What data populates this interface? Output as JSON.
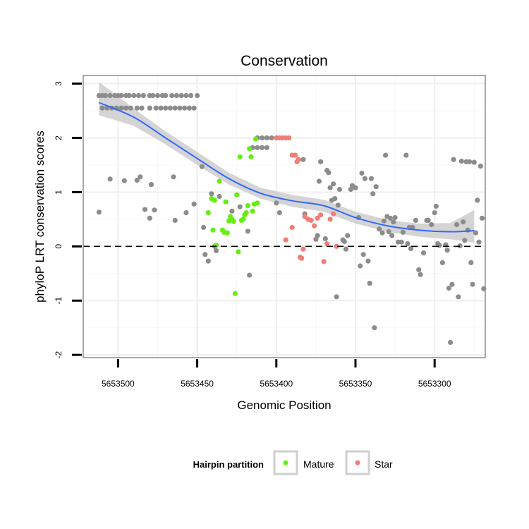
{
  "chart_data": {
    "type": "scatter",
    "title": "Conservation",
    "xlabel": "Genomic Position",
    "ylabel": "phyloP LRT conservation scores",
    "x_reversed": true,
    "xlim": [
      5653522,
      5653268
    ],
    "ylim": [
      -2.05,
      3.15
    ],
    "x_ticks": [
      5653500,
      5653450,
      5653400,
      5653350,
      5653300
    ],
    "x_tick_labels": [
      "5653500",
      "5653450",
      "5653400",
      "5653350",
      "5653300"
    ],
    "y_ticks": [
      -2,
      -1,
      0,
      1,
      2,
      3
    ],
    "y_tick_labels": [
      "-2",
      "-1",
      "0",
      "1",
      "2",
      "3"
    ],
    "reference_line": {
      "y": 0,
      "style": "dashed"
    },
    "legend": {
      "title": "Hairpin partition",
      "position": "bottom",
      "entries": [
        {
          "label": "Mature",
          "color": "#66ee11"
        },
        {
          "label": "Star",
          "color": "#f07e76"
        }
      ]
    },
    "colors": {
      "Other": "#8c8c8c",
      "Mature": "#66ee11",
      "Star": "#f07e76",
      "smooth": "#3366ff",
      "band": "#cccccc"
    },
    "smooth_line": {
      "x": [
        5653512,
        5653490,
        5653470,
        5653450,
        5653430,
        5653410,
        5653390,
        5653370,
        5653350,
        5653330,
        5653310,
        5653290,
        5653275
      ],
      "y": [
        2.65,
        2.38,
        2.0,
        1.62,
        1.25,
        0.98,
        0.84,
        0.75,
        0.53,
        0.38,
        0.3,
        0.27,
        0.29
      ],
      "band_low": [
        2.42,
        2.22,
        1.88,
        1.5,
        1.14,
        0.88,
        0.73,
        0.64,
        0.42,
        0.27,
        0.18,
        0.13,
        0.07
      ],
      "band_high": [
        3.03,
        2.54,
        2.12,
        1.74,
        1.36,
        1.08,
        0.95,
        0.86,
        0.64,
        0.49,
        0.42,
        0.43,
        0.67
      ]
    },
    "series": [
      {
        "name": "Other",
        "points": [
          [
            5653512,
            2.78
          ],
          [
            5653510,
            2.78
          ],
          [
            5653508,
            2.78
          ],
          [
            5653505,
            2.78
          ],
          [
            5653502,
            2.78
          ],
          [
            5653500,
            2.78
          ],
          [
            5653498,
            2.78
          ],
          [
            5653495,
            2.78
          ],
          [
            5653493,
            2.78
          ],
          [
            5653490,
            2.78
          ],
          [
            5653487,
            2.78
          ],
          [
            5653484,
            2.78
          ],
          [
            5653480,
            2.78
          ],
          [
            5653478,
            2.78
          ],
          [
            5653475,
            2.78
          ],
          [
            5653472,
            2.78
          ],
          [
            5653470,
            2.78
          ],
          [
            5653466,
            2.78
          ],
          [
            5653463,
            2.78
          ],
          [
            5653460,
            2.78
          ],
          [
            5653457,
            2.78
          ],
          [
            5653454,
            2.78
          ],
          [
            5653450,
            2.78
          ],
          [
            5653510,
            2.55
          ],
          [
            5653507,
            2.55
          ],
          [
            5653504,
            2.55
          ],
          [
            5653501,
            2.55
          ],
          [
            5653498,
            2.55
          ],
          [
            5653495,
            2.55
          ],
          [
            5653492,
            2.55
          ],
          [
            5653488,
            2.55
          ],
          [
            5653485,
            2.55
          ],
          [
            5653480,
            2.55
          ],
          [
            5653476,
            2.55
          ],
          [
            5653473,
            2.55
          ],
          [
            5653470,
            2.55
          ],
          [
            5653467,
            2.55
          ],
          [
            5653464,
            2.55
          ],
          [
            5653461,
            2.55
          ],
          [
            5653458,
            2.55
          ],
          [
            5653455,
            2.55
          ],
          [
            5653452,
            2.55
          ],
          [
            5653412,
            2.0
          ],
          [
            5653409,
            2.0
          ],
          [
            5653406,
            2.0
          ],
          [
            5653403,
            2.0
          ],
          [
            5653412,
            1.82
          ],
          [
            5653409,
            1.82
          ],
          [
            5653406,
            1.82
          ],
          [
            5653415,
            1.82
          ],
          [
            5653512,
            0.63
          ],
          [
            5653505,
            1.24
          ],
          [
            5653496,
            1.21
          ],
          [
            5653488,
            1.22
          ],
          [
            5653486,
            1.28
          ],
          [
            5653483,
            0.68
          ],
          [
            5653480,
            0.52
          ],
          [
            5653479,
            1.14
          ],
          [
            5653477,
            0.67
          ],
          [
            5653465,
            1.28
          ],
          [
            5653464,
            0.48
          ],
          [
            5653457,
            0.62
          ],
          [
            5653452,
            0.78
          ],
          [
            5653447,
            1.47
          ],
          [
            5653446,
            0.35
          ],
          [
            5653445,
            -0.15
          ],
          [
            5653443,
            -0.27
          ],
          [
            5653441,
            0.97
          ],
          [
            5653439,
            0.0
          ],
          [
            5653438,
            -0.08
          ],
          [
            5653436,
            0.92
          ],
          [
            5653428,
            0.65
          ],
          [
            5653423,
            0.73
          ],
          [
            5653418,
            0.28
          ],
          [
            5653417,
            -0.53
          ],
          [
            5653400,
            0.8
          ],
          [
            5653398,
            0.62
          ],
          [
            5653383,
            1.6
          ],
          [
            5653382,
            0.6
          ],
          [
            5653380,
            0.5
          ],
          [
            5653375,
            0.13
          ],
          [
            5653374,
            0.2
          ],
          [
            5653373,
            1.2
          ],
          [
            5653372,
            1.56
          ],
          [
            5653369,
            0.14
          ],
          [
            5653368,
            1.4
          ],
          [
            5653367,
            1.36
          ],
          [
            5653366,
            1.08
          ],
          [
            5653365,
            0.85
          ],
          [
            5653364,
            1.15
          ],
          [
            5653363,
            0.88
          ],
          [
            5653362,
            -0.93
          ],
          [
            5653361,
            0.76
          ],
          [
            5653360,
            1.05
          ],
          [
            5653358,
            0.12
          ],
          [
            5653357,
            0.09
          ],
          [
            5653356,
            -0.05
          ],
          [
            5653355,
            0.2
          ],
          [
            5653353,
            1.05
          ],
          [
            5653352,
            1.12
          ],
          [
            5653350,
            1.08
          ],
          [
            5653348,
            0.53
          ],
          [
            5653347,
            -0.36
          ],
          [
            5653346,
            1.35
          ],
          [
            5653345,
            -0.15
          ],
          [
            5653344,
            1.25
          ],
          [
            5653342,
            -0.27
          ],
          [
            5653341,
            -0.68
          ],
          [
            5653340,
            1.25
          ],
          [
            5653339,
            0.97
          ],
          [
            5653338,
            -1.5
          ],
          [
            5653337,
            1.1
          ],
          [
            5653335,
            0.32
          ],
          [
            5653333,
            0.25
          ],
          [
            5653332,
            0.47
          ],
          [
            5653331,
            1.68
          ],
          [
            5653330,
            0.55
          ],
          [
            5653329,
            0.27
          ],
          [
            5653328,
            0.52
          ],
          [
            5653327,
            0.2
          ],
          [
            5653326,
            0.45
          ],
          [
            5653325,
            0.53
          ],
          [
            5653323,
            0.08
          ],
          [
            5653321,
            0.08
          ],
          [
            5653320,
            0.26
          ],
          [
            5653318,
            1.68
          ],
          [
            5653317,
            0.05
          ],
          [
            5653316,
            0.35
          ],
          [
            5653315,
            -0.04
          ],
          [
            5653314,
            0.35
          ],
          [
            5653312,
            0.48
          ],
          [
            5653310,
            -0.43
          ],
          [
            5653309,
            -0.52
          ],
          [
            5653307,
            -0.12
          ],
          [
            5653305,
            0.48
          ],
          [
            5653304,
            0.48
          ],
          [
            5653302,
            0.4
          ],
          [
            5653300,
            0.62
          ],
          [
            5653299,
            0.74
          ],
          [
            5653298,
            0.05
          ],
          [
            5653297,
            0.02
          ],
          [
            5653295,
            -0.3
          ],
          [
            5653293,
            0.03
          ],
          [
            5653292,
            -0.07
          ],
          [
            5653290,
            -1.77
          ],
          [
            5653289,
            -0.7
          ],
          [
            5653288,
            1.6
          ],
          [
            5653286,
            0.4
          ],
          [
            5653285,
            -0.93
          ],
          [
            5653284,
            0.01
          ],
          [
            5653283,
            1.57
          ],
          [
            5653282,
            0.45
          ],
          [
            5653281,
            0.11
          ],
          [
            5653280,
            1.56
          ],
          [
            5653279,
            0.3
          ],
          [
            5653278,
            1.56
          ],
          [
            5653277,
            -0.3
          ],
          [
            5653276,
            -0.7
          ],
          [
            5653275,
            1.55
          ],
          [
            5653274,
            0.25
          ],
          [
            5653273,
            0.85
          ],
          [
            5653272,
            0.08
          ],
          [
            5653271,
            1.48
          ],
          [
            5653270,
            0.52
          ],
          [
            5653269,
            -0.78
          ],
          [
            5653291,
            -0.77
          ]
        ]
      },
      {
        "name": "Mature",
        "points": [
          [
            5653438,
            0.02
          ],
          [
            5653436,
            1.2
          ],
          [
            5653434,
            0.3
          ],
          [
            5653433,
            0.26
          ],
          [
            5653432,
            0.82
          ],
          [
            5653431,
            0.25
          ],
          [
            5653430,
            0.47
          ],
          [
            5653429,
            0.55
          ],
          [
            5653428,
            0.5
          ],
          [
            5653427,
            0.46
          ],
          [
            5653426,
            -0.87
          ],
          [
            5653425,
            0.95
          ],
          [
            5653424,
            -0.1
          ],
          [
            5653423,
            1.65
          ],
          [
            5653422,
            0.48
          ],
          [
            5653421,
            0.5
          ],
          [
            5653420,
            0.58
          ],
          [
            5653419,
            0.62
          ],
          [
            5653418,
            0.75
          ],
          [
            5653417,
            1.8
          ],
          [
            5653416,
            1.65
          ],
          [
            5653415,
            0.65
          ],
          [
            5653414,
            0.78
          ],
          [
            5653413,
            1.98
          ],
          [
            5653439,
            0.85
          ],
          [
            5653441,
            0.88
          ],
          [
            5653443,
            0.62
          ],
          [
            5653440,
            0.3
          ],
          [
            5653412,
            0.8
          ]
        ]
      },
      {
        "name": "Star",
        "points": [
          [
            5653400,
            2.0
          ],
          [
            5653398,
            2.0
          ],
          [
            5653396,
            2.0
          ],
          [
            5653394,
            2.0
          ],
          [
            5653392,
            2.0
          ],
          [
            5653390,
            1.68
          ],
          [
            5653388,
            1.68
          ],
          [
            5653387,
            1.56
          ],
          [
            5653386,
            1.6
          ],
          [
            5653385,
            -0.2
          ],
          [
            5653384,
            -0.22
          ],
          [
            5653383,
            -0.05
          ],
          [
            5653382,
            0.55
          ],
          [
            5653380,
            0.5
          ],
          [
            5653378,
            0.48
          ],
          [
            5653376,
            0.38
          ],
          [
            5653374,
            0.52
          ],
          [
            5653372,
            0.58
          ],
          [
            5653370,
            -0.28
          ],
          [
            5653368,
            0.05
          ],
          [
            5653366,
            0.5
          ],
          [
            5653364,
            0.6
          ],
          [
            5653362,
            0.0
          ],
          [
            5653390,
            0.35
          ],
          [
            5653394,
            0.12
          ]
        ]
      }
    ]
  }
}
